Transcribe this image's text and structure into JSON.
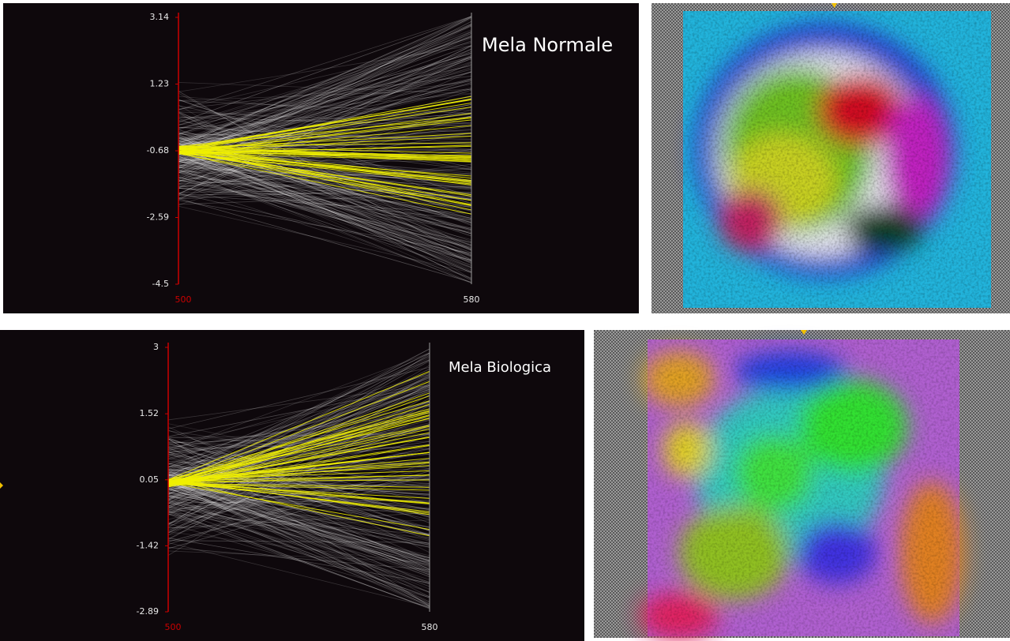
{
  "chart_data": [
    {
      "type": "parallel",
      "title": "Mela Normale",
      "axes": [
        "500",
        "580"
      ],
      "axis_colors": [
        "#cc0000",
        "#9a9a9a"
      ],
      "ylim": [
        -4.5,
        3.14
      ],
      "yticks": [
        -4.5,
        -2.59,
        -0.68,
        1.23,
        3.14
      ]
    },
    {
      "type": "parallel",
      "title": "Mela Biologica",
      "axes": [
        "500",
        "580"
      ],
      "axis_colors": [
        "#cc0000",
        "#9a9a9a"
      ],
      "ylim": [
        -2.89,
        3
      ],
      "yticks": [
        -2.89,
        -1.42,
        0.05,
        1.52,
        3
      ]
    }
  ]
}
